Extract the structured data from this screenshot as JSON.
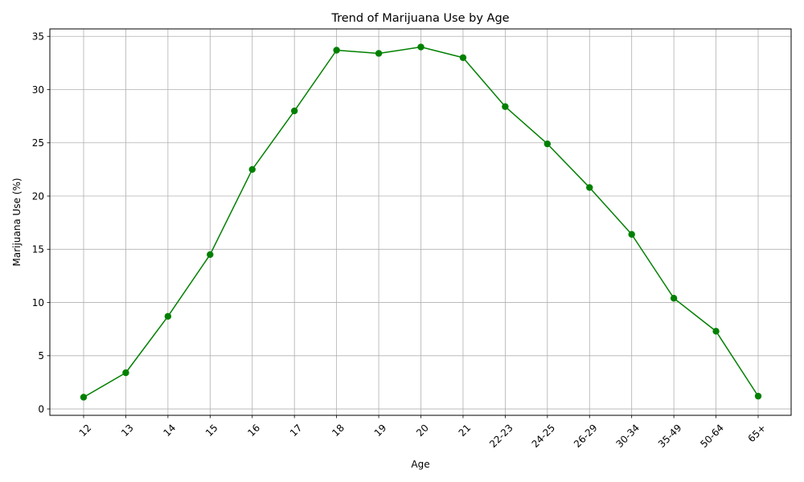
{
  "chart_data": {
    "type": "line",
    "title": "Trend of Marijuana Use by Age",
    "xlabel": "Age",
    "ylabel": "Marijuana Use (%)",
    "categories": [
      "12",
      "13",
      "14",
      "15",
      "16",
      "17",
      "18",
      "19",
      "20",
      "21",
      "22-23",
      "24-25",
      "26-29",
      "30-34",
      "35-49",
      "50-64",
      "65+"
    ],
    "series": [
      {
        "values": [
          1.1,
          3.4,
          8.7,
          14.5,
          22.5,
          28.0,
          33.7,
          33.4,
          34.0,
          33.0,
          28.4,
          24.9,
          20.8,
          16.4,
          10.4,
          7.3,
          1.2
        ],
        "color": "#008000",
        "marker": "circle"
      }
    ],
    "ylim": [
      -0.6,
      35.7
    ],
    "yticks": [
      0,
      5,
      10,
      15,
      20,
      25,
      30,
      35
    ],
    "grid": true,
    "x_tick_rotation": 45
  }
}
